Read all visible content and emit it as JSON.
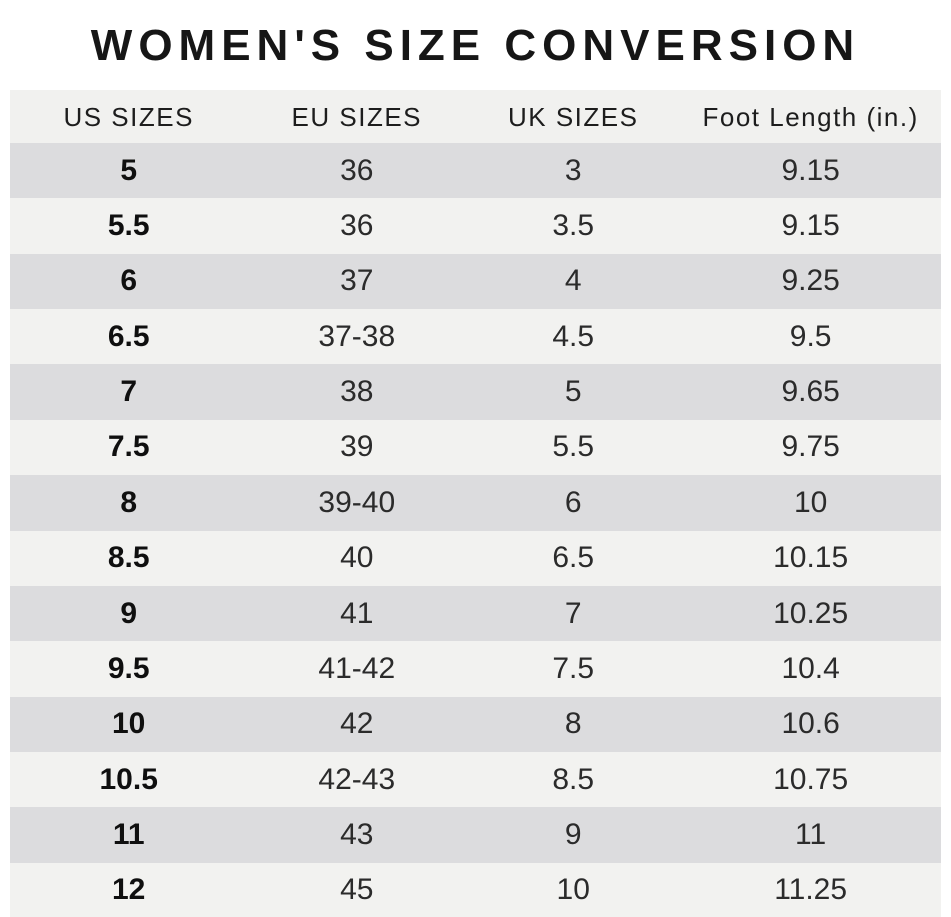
{
  "page_title": "WOMEN'S SIZE CONVERSION",
  "table": {
    "headers": [
      "US SIZES",
      "EU SIZES",
      "UK SIZES",
      "Foot Length (in.)"
    ],
    "rows": [
      [
        "5",
        "36",
        "3",
        "9.15"
      ],
      [
        "5.5",
        "36",
        "3.5",
        "9.15"
      ],
      [
        "6",
        "37",
        "4",
        "9.25"
      ],
      [
        "6.5",
        "37-38",
        "4.5",
        "9.5"
      ],
      [
        "7",
        "38",
        "5",
        "9.65"
      ],
      [
        "7.5",
        "39",
        "5.5",
        "9.75"
      ],
      [
        "8",
        "39-40",
        "6",
        "10"
      ],
      [
        "8.5",
        "40",
        "6.5",
        "10.15"
      ],
      [
        "9",
        "41",
        "7",
        "10.25"
      ],
      [
        "9.5",
        "41-42",
        "7.5",
        "10.4"
      ],
      [
        "10",
        "42",
        "8",
        "10.6"
      ],
      [
        "10.5",
        "42-43",
        "8.5",
        "10.75"
      ],
      [
        "11",
        "43",
        "9",
        "11"
      ],
      [
        "12",
        "45",
        "10",
        "11.25"
      ]
    ]
  },
  "colors": {
    "row_dark": "#dcdcde",
    "row_light": "#f2f2f0",
    "header_bg": "#f1f1ef",
    "title_text": "#161616",
    "cell_text": "#2b2b2b"
  }
}
